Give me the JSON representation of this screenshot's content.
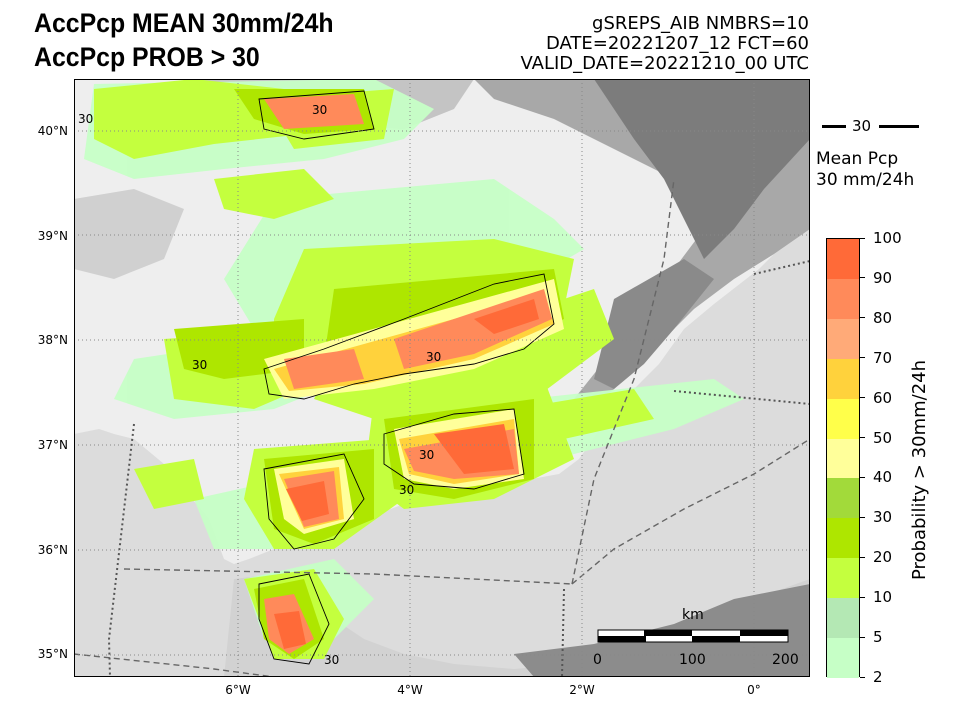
{
  "header": {
    "title_line1": "AccPcp MEAN 30mm/24h",
    "title_line2": "AccPcp PROB > 30",
    "info_line1": "gSREPS_AIB     NMBRS=10",
    "info_line2": "DATE=20221207_12    FCT=60",
    "info_line3": "VALID_DATE=20221210_00 UTC"
  },
  "map": {
    "lat_labels": [
      "40°N",
      "39°N",
      "38°N",
      "37°N",
      "36°N",
      "35°N"
    ],
    "lon_labels": [
      "6°W",
      "4°W",
      "2°W",
      "0°"
    ],
    "contour_label": "30"
  },
  "contour_legend": {
    "line_label": "30",
    "text_line1": "Mean Pcp",
    "text_line2": "30 mm/24h"
  },
  "colorbar": {
    "title": "Probability > 30mm/24h",
    "ticks": [
      "2",
      "5",
      "10",
      "20",
      "30",
      "40",
      "50",
      "60",
      "70",
      "80",
      "90",
      "100"
    ],
    "colors": [
      "#c6ffc6",
      "#b4e8b4",
      "#c4ff3e",
      "#aee600",
      "#a2da3a",
      "#ffff9a",
      "#ffff4a",
      "#ffd23c",
      "#ffaa78",
      "#ff8a5a",
      "#ff6a38"
    ]
  },
  "scalebar": {
    "unit": "km",
    "labels": [
      "0",
      "100",
      "200"
    ]
  }
}
